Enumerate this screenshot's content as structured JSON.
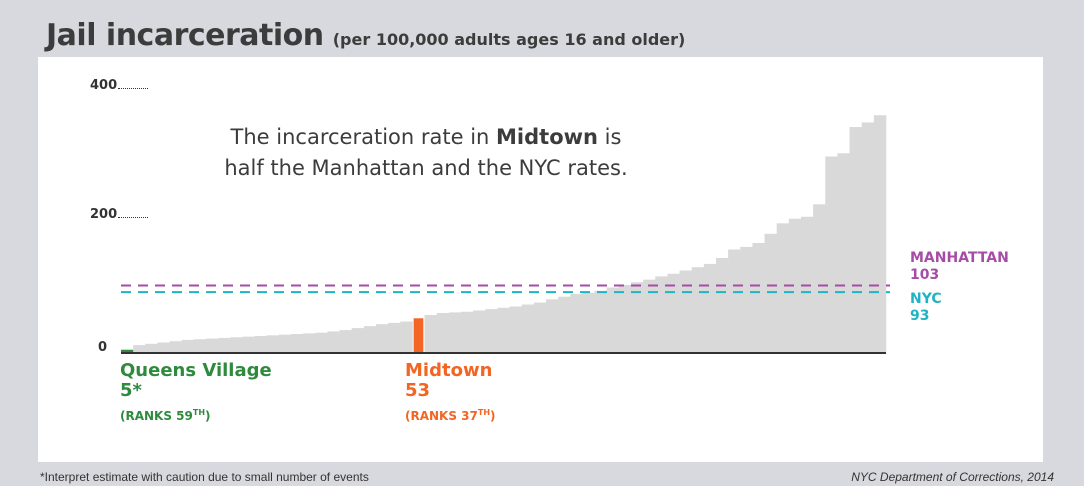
{
  "title": "Jail incarceration",
  "subtitle": "(per 100,000 adults ages 16 and older)",
  "annotation": {
    "pre": "The incarceration rate in ",
    "bold": "Midtown",
    "post": " is half the Manhattan and the NYC rates."
  },
  "footnote": "*Interpret estimate with caution due to small number of events",
  "source": "NYC Department of Corrections, 2014",
  "colors": {
    "bar": "#d9d9d9",
    "low_highlight": "#2e8b3e",
    "highlight": "#f26522",
    "manhattan": "#a64ca6",
    "nyc": "#1fb3c4",
    "axis": "#333333"
  },
  "chart_data": {
    "type": "bar",
    "ylim": [
      0,
      400
    ],
    "yticks": [
      "400",
      "200",
      "0"
    ],
    "ytick_values": [
      400,
      200,
      0
    ],
    "values": [
      5,
      12,
      14,
      16,
      18,
      20,
      21,
      22,
      23,
      24,
      25,
      26,
      27,
      28,
      29,
      30,
      31,
      33,
      35,
      38,
      41,
      44,
      46,
      48,
      53,
      58,
      61,
      62,
      63,
      65,
      67,
      69,
      71,
      74,
      77,
      82,
      86,
      90,
      92,
      95,
      100,
      104,
      108,
      112,
      117,
      121,
      126,
      131,
      136,
      145,
      158,
      162,
      168,
      182,
      198,
      205,
      208,
      227,
      300,
      305,
      345,
      352,
      363
    ],
    "highlight_low_index": 0,
    "highlight_index": 24,
    "reference_lines": [
      {
        "label": "MANHATTAN",
        "value": 103,
        "value_label": "103"
      },
      {
        "label": "NYC",
        "value": 93,
        "value_label": "93"
      }
    ],
    "callouts": {
      "low": {
        "name": "Queens Village",
        "value": "5*",
        "rank_prefix": "(RANKS 59",
        "rank_sup": "TH",
        "rank_suffix": ")"
      },
      "mid": {
        "name": "Midtown",
        "value": "53",
        "rank_prefix": "(RANKS 37",
        "rank_sup": "TH",
        "rank_suffix": ")"
      }
    }
  }
}
